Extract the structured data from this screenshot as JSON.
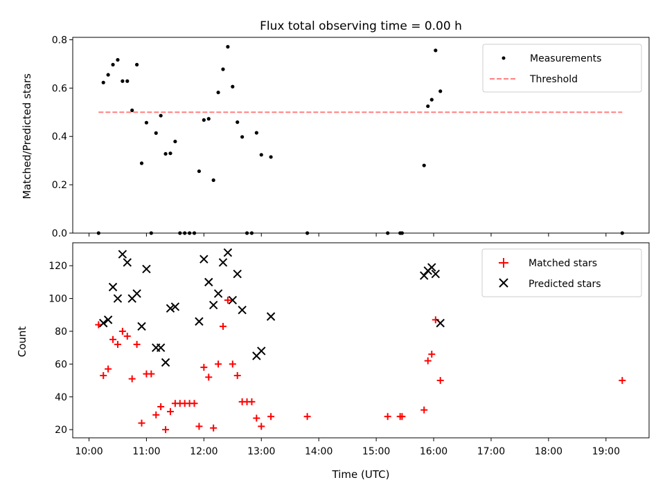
{
  "chart_data": [
    {
      "type": "scatter",
      "title": "Flux total observing time = 0.00 h",
      "xlabel": "",
      "ylabel": "Matched/Predicted stars",
      "ylim": [
        0,
        0.81
      ],
      "xlim": [
        "09:43",
        "19:45"
      ],
      "yticks": [
        0.0,
        0.2,
        0.4,
        0.6,
        0.8
      ],
      "ytick_labels": [
        "0.0",
        "0.2",
        "0.4",
        "0.6",
        "0.8"
      ],
      "grid": false,
      "legend_position": "top-right",
      "legend": [
        "Measurements",
        "Threshold"
      ],
      "series": [
        {
          "name": "Measurements",
          "marker": "dot",
          "color": "#000000",
          "points": [
            [
              "10:10",
              0.0
            ],
            [
              "10:15",
              0.623
            ],
            [
              "10:20",
              0.655
            ],
            [
              "10:25",
              0.697
            ],
            [
              "10:30",
              0.717
            ],
            [
              "10:35",
              0.629
            ],
            [
              "10:40",
              0.629
            ],
            [
              "10:45",
              0.508
            ],
            [
              "10:50",
              0.697
            ],
            [
              "10:55",
              0.289
            ],
            [
              "11:00",
              0.457
            ],
            [
              "11:05",
              0.0
            ],
            [
              "11:10",
              0.414
            ],
            [
              "11:15",
              0.486
            ],
            [
              "11:20",
              0.328
            ],
            [
              "11:25",
              0.33
            ],
            [
              "11:30",
              0.379
            ],
            [
              "11:35",
              0.0
            ],
            [
              "11:40",
              0.0
            ],
            [
              "11:45",
              0.0
            ],
            [
              "11:50",
              0.0
            ],
            [
              "11:55",
              0.256
            ],
            [
              "12:00",
              0.468
            ],
            [
              "12:05",
              0.473
            ],
            [
              "12:10",
              0.219
            ],
            [
              "12:15",
              0.582
            ],
            [
              "12:20",
              0.678
            ],
            [
              "12:25",
              0.771
            ],
            [
              "12:30",
              0.606
            ],
            [
              "12:35",
              0.459
            ],
            [
              "12:40",
              0.398
            ],
            [
              "12:45",
              0.0
            ],
            [
              "12:50",
              0.0
            ],
            [
              "12:55",
              0.415
            ],
            [
              "13:00",
              0.324
            ],
            [
              "13:10",
              0.315
            ],
            [
              "13:48",
              0.0
            ],
            [
              "15:12",
              0.0
            ],
            [
              "15:25",
              0.0
            ],
            [
              "15:27",
              0.0
            ],
            [
              "15:50",
              0.28
            ],
            [
              "15:54",
              0.525
            ],
            [
              "15:58",
              0.552
            ],
            [
              "16:02",
              0.756
            ],
            [
              "16:07",
              0.587
            ],
            [
              "19:17",
              0.0
            ]
          ]
        },
        {
          "name": "Threshold",
          "line": "dashed",
          "color": "#ff7f7f",
          "x": [
            "10:10",
            "19:17"
          ],
          "y": [
            0.5,
            0.5
          ]
        }
      ]
    },
    {
      "type": "scatter",
      "title": "",
      "xlabel": "Time (UTC)",
      "ylabel": "Count",
      "ylim": [
        15,
        134
      ],
      "xlim": [
        "09:43",
        "19:45"
      ],
      "yticks": [
        20,
        40,
        60,
        80,
        100,
        120
      ],
      "ytick_labels": [
        "20",
        "40",
        "60",
        "80",
        "100",
        "120"
      ],
      "xticks": [
        "10:00",
        "11:00",
        "12:00",
        "13:00",
        "14:00",
        "15:00",
        "16:00",
        "17:00",
        "18:00",
        "19:00"
      ],
      "xtick_labels": [
        "10:00",
        "11:00",
        "12:00",
        "13:00",
        "14:00",
        "15:00",
        "16:00",
        "17:00",
        "18:00",
        "19:00"
      ],
      "grid": false,
      "legend_position": "top-right",
      "legend": [
        "Matched stars",
        "Predicted stars"
      ],
      "series": [
        {
          "name": "Matched stars",
          "marker": "plus",
          "color": "#ff0000",
          "points": [
            [
              "10:10",
              84
            ],
            [
              "10:15",
              53
            ],
            [
              "10:20",
              57
            ],
            [
              "10:25",
              75
            ],
            [
              "10:30",
              72
            ],
            [
              "10:35",
              80
            ],
            [
              "10:40",
              77
            ],
            [
              "10:45",
              51
            ],
            [
              "10:50",
              72
            ],
            [
              "10:55",
              24
            ],
            [
              "11:00",
              54
            ],
            [
              "11:05",
              54
            ],
            [
              "11:10",
              29
            ],
            [
              "11:15",
              34
            ],
            [
              "11:20",
              20
            ],
            [
              "11:25",
              31
            ],
            [
              "11:30",
              36
            ],
            [
              "11:35",
              36
            ],
            [
              "11:40",
              36
            ],
            [
              "11:45",
              36
            ],
            [
              "11:50",
              36
            ],
            [
              "11:55",
              22
            ],
            [
              "12:00",
              58
            ],
            [
              "12:05",
              52
            ],
            [
              "12:10",
              21
            ],
            [
              "12:15",
              60
            ],
            [
              "12:20",
              83
            ],
            [
              "12:25",
              99
            ],
            [
              "12:30",
              60
            ],
            [
              "12:35",
              53
            ],
            [
              "12:40",
              37
            ],
            [
              "12:45",
              37
            ],
            [
              "12:50",
              37
            ],
            [
              "12:55",
              27
            ],
            [
              "13:00",
              22
            ],
            [
              "13:10",
              28
            ],
            [
              "13:48",
              28
            ],
            [
              "15:12",
              28
            ],
            [
              "15:25",
              28
            ],
            [
              "15:27",
              28
            ],
            [
              "15:50",
              32
            ],
            [
              "15:54",
              62
            ],
            [
              "15:58",
              66
            ],
            [
              "16:02",
              87
            ],
            [
              "16:07",
              50
            ],
            [
              "19:17",
              50
            ]
          ]
        },
        {
          "name": "Predicted stars",
          "marker": "x",
          "color": "#000000",
          "points": [
            [
              "10:15",
              85
            ],
            [
              "10:20",
              87
            ],
            [
              "10:25",
              107
            ],
            [
              "10:30",
              100
            ],
            [
              "10:35",
              127
            ],
            [
              "10:40",
              122
            ],
            [
              "10:45",
              100
            ],
            [
              "10:50",
              103
            ],
            [
              "10:55",
              83
            ],
            [
              "11:00",
              118
            ],
            [
              "11:10",
              70
            ],
            [
              "11:15",
              70
            ],
            [
              "11:20",
              61
            ],
            [
              "11:25",
              94
            ],
            [
              "11:30",
              95
            ],
            [
              "11:55",
              86
            ],
            [
              "12:00",
              124
            ],
            [
              "12:05",
              110
            ],
            [
              "12:10",
              96
            ],
            [
              "12:15",
              103
            ],
            [
              "12:20",
              122
            ],
            [
              "12:25",
              128
            ],
            [
              "12:30",
              99
            ],
            [
              "12:35",
              115
            ],
            [
              "12:40",
              93
            ],
            [
              "12:55",
              65
            ],
            [
              "13:00",
              68
            ],
            [
              "13:10",
              89
            ],
            [
              "15:50",
              114
            ],
            [
              "15:54",
              117
            ],
            [
              "15:58",
              119
            ],
            [
              "16:02",
              115
            ],
            [
              "16:07",
              85
            ]
          ]
        }
      ]
    }
  ]
}
